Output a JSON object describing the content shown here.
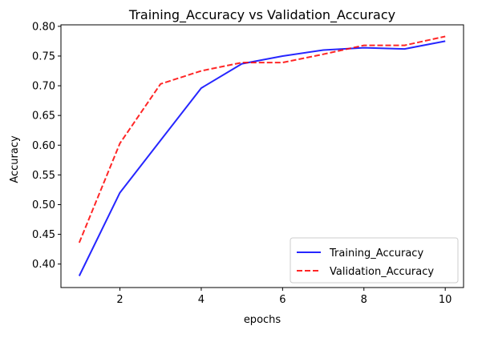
{
  "chart_data": {
    "type": "line",
    "title": "Training_Accuracy vs Validation_Accuracy",
    "xlabel": "epochs",
    "ylabel": "Accuracy",
    "x": [
      1,
      2,
      3,
      4,
      5,
      6,
      7,
      8,
      9,
      10
    ],
    "xlim": [
      0.55,
      10.45
    ],
    "ylim": [
      0.3605,
      0.8025
    ],
    "xticks": [
      2,
      4,
      6,
      8,
      10
    ],
    "yticks": [
      0.4,
      0.45,
      0.5,
      0.55,
      0.6,
      0.65,
      0.7,
      0.75,
      0.8
    ],
    "xtick_labels": [
      "2",
      "4",
      "6",
      "8",
      "10"
    ],
    "ytick_labels": [
      "0.40",
      "0.45",
      "0.50",
      "0.55",
      "0.60",
      "0.65",
      "0.70",
      "0.75",
      "0.80"
    ],
    "grid": false,
    "legend_position": "lower-right",
    "series": [
      {
        "name": "Training_Accuracy",
        "color": "#0000ff",
        "style": "solid",
        "values": [
          0.38,
          0.52,
          0.608,
          0.696,
          0.737,
          0.75,
          0.76,
          0.764,
          0.762,
          0.775
        ]
      },
      {
        "name": "Validation_Accuracy",
        "color": "#ff0000",
        "style": "dashed",
        "values": [
          0.436,
          0.603,
          0.703,
          0.725,
          0.739,
          0.739,
          0.753,
          0.768,
          0.768,
          0.783
        ]
      }
    ]
  }
}
